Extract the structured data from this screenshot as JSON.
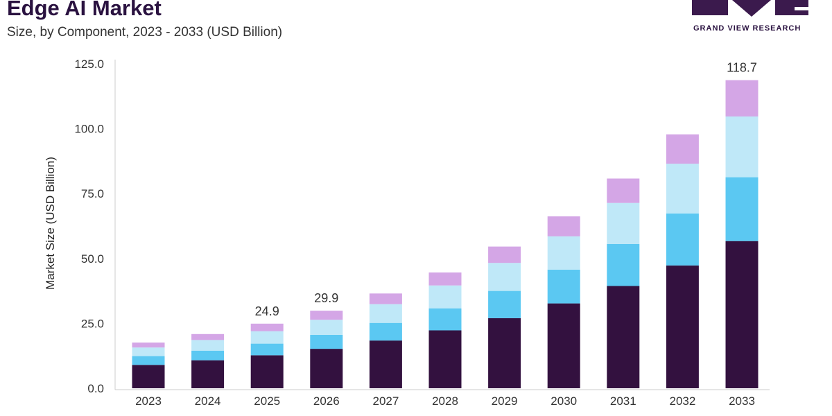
{
  "header": {
    "title": "Edge AI Market",
    "subtitle": "Size, by Component, 2023 - 2033 (USD Billion)"
  },
  "logo": {
    "text": "GRAND VIEW RESEARCH"
  },
  "colors": {
    "segment_1": "#33113f",
    "segment_2": "#5bc8f2",
    "segment_3": "#bfe8f8",
    "segment_4": "#d4a6e6",
    "logo": "#3b1a4d"
  },
  "chart_data": {
    "type": "bar",
    "stacked": true,
    "title": "Edge AI Market",
    "subtitle": "Size, by Component, 2023 - 2033 (USD Billion)",
    "xlabel": "",
    "ylabel": "Market Size (USD Billion)",
    "ylim": [
      0,
      125
    ],
    "yticks": [
      "0.0",
      "25.0",
      "50.0",
      "75.0",
      "100.0",
      "125.0"
    ],
    "ytick_values": [
      0,
      25,
      50,
      75,
      100,
      125
    ],
    "grid": false,
    "legend": "none",
    "categories": [
      "2023",
      "2024",
      "2025",
      "2026",
      "2027",
      "2028",
      "2029",
      "2030",
      "2031",
      "2032",
      "2033"
    ],
    "series": [
      {
        "values": [
          9.0,
          10.8,
          12.7,
          15.2,
          18.4,
          22.3,
          27.0,
          32.7,
          39.4,
          47.3,
          56.7
        ]
      },
      {
        "values": [
          3.4,
          3.7,
          4.5,
          5.4,
          6.8,
          8.5,
          10.5,
          13.0,
          16.2,
          20.0,
          24.6
        ]
      },
      {
        "values": [
          3.3,
          4.1,
          4.8,
          5.8,
          7.2,
          8.8,
          10.8,
          12.8,
          15.8,
          19.2,
          23.4
        ]
      },
      {
        "values": [
          1.9,
          2.3,
          2.9,
          3.5,
          4.1,
          5.0,
          6.3,
          7.7,
          9.4,
          11.3,
          14.0
        ]
      }
    ],
    "data_labels": [
      {
        "category": "2025",
        "text": "24.9"
      },
      {
        "category": "2026",
        "text": "29.9"
      },
      {
        "category": "2033",
        "text": "118.7"
      }
    ]
  }
}
